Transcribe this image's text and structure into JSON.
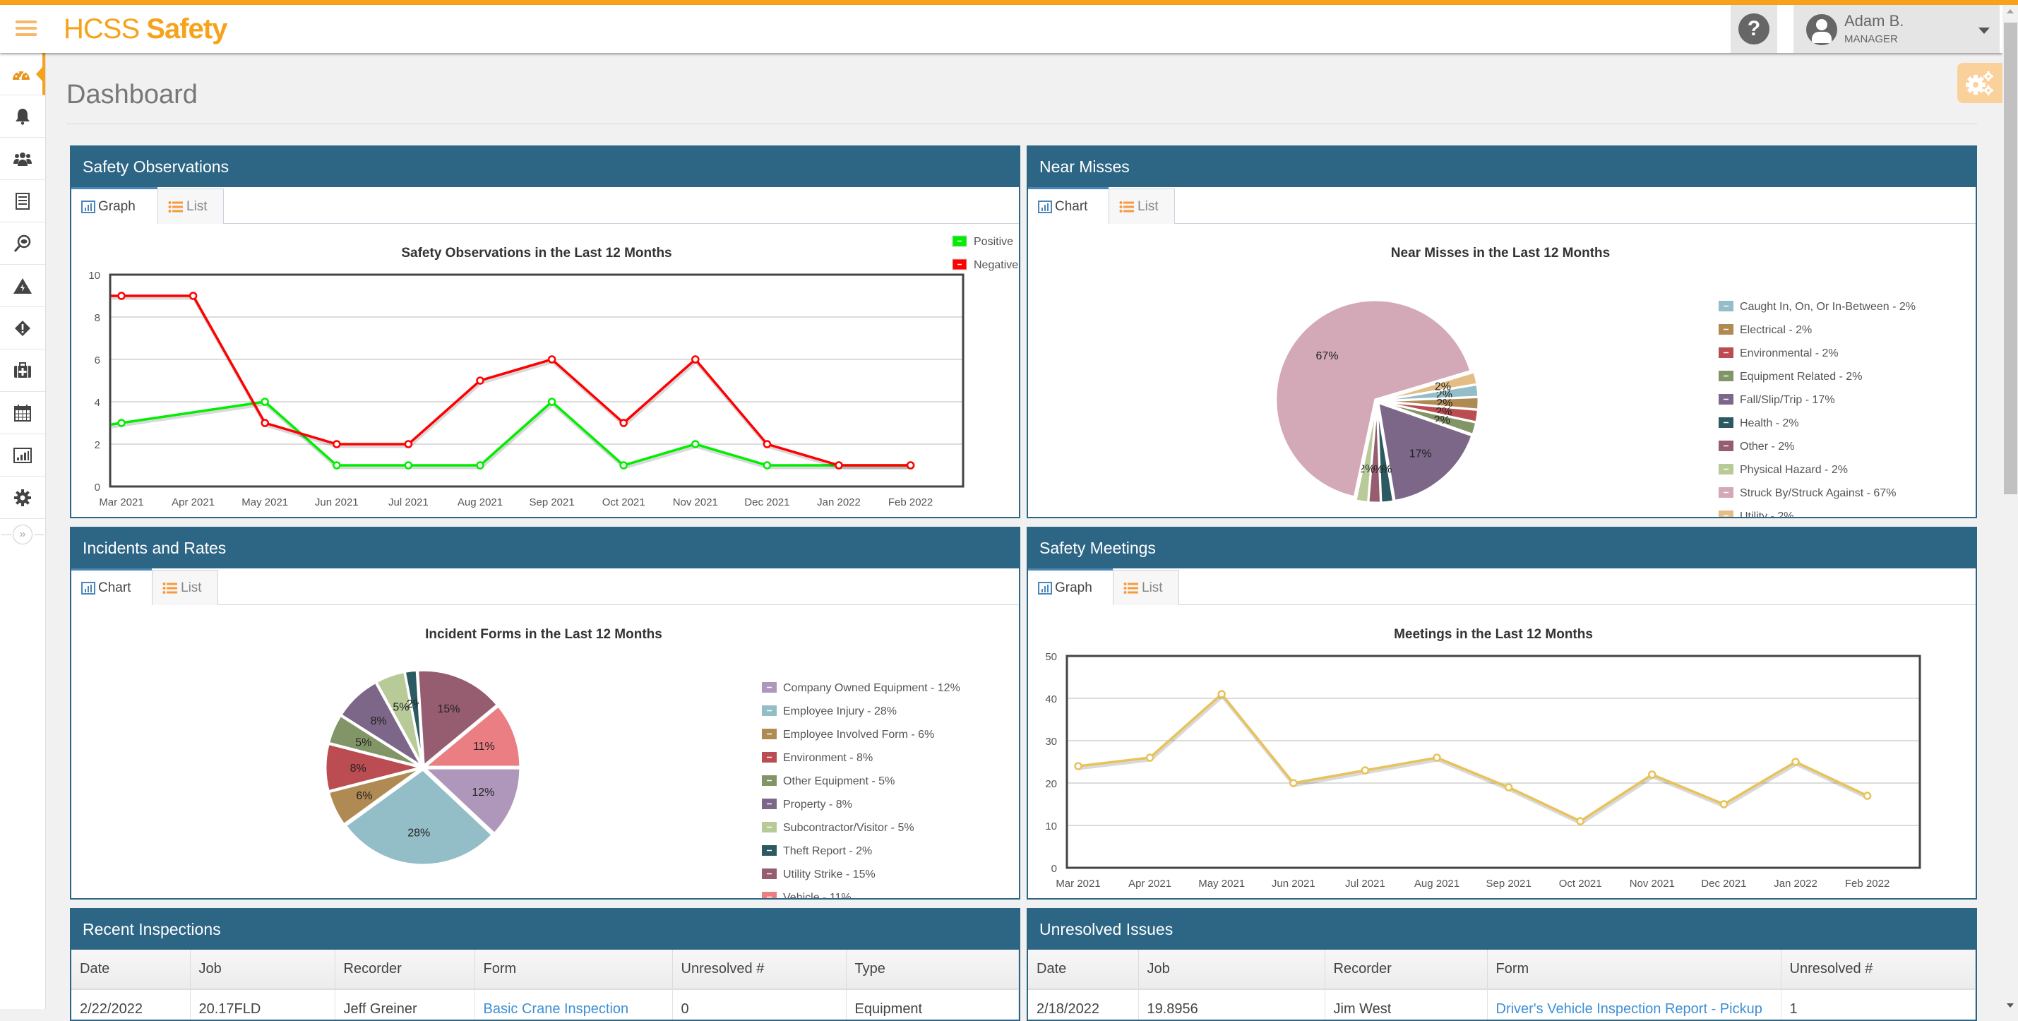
{
  "app": {
    "brand_light": "HCSS",
    "brand_bold": "Safety",
    "accent": "#f7a21b",
    "panel_header": "#2d6585"
  },
  "header": {
    "help_icon": "question-circle-icon",
    "user_name": "Adam B.",
    "user_role": "MANAGER"
  },
  "sidebar": {
    "items": [
      {
        "name": "dashboard",
        "icon": "dashboard-gauge-icon",
        "active": true
      },
      {
        "name": "notifications",
        "icon": "bell-icon"
      },
      {
        "name": "people",
        "icon": "users-icon"
      },
      {
        "name": "forms",
        "icon": "checklist-icon"
      },
      {
        "name": "observations",
        "icon": "eye-magnifier-icon"
      },
      {
        "name": "hazards",
        "icon": "warning-triangle-icon"
      },
      {
        "name": "near-misses",
        "icon": "diamond-exclamation-icon"
      },
      {
        "name": "incidents",
        "icon": "medkit-icon"
      },
      {
        "name": "meetings",
        "icon": "calendar-icon"
      },
      {
        "name": "reports",
        "icon": "bar-chart-icon"
      },
      {
        "name": "settings",
        "icon": "gear-icon"
      }
    ],
    "expand_label": "»"
  },
  "page": {
    "title": "Dashboard",
    "settings_icon": "gears-icon"
  },
  "panels": {
    "safety_observations": {
      "title": "Safety Observations",
      "tabs": [
        "Graph",
        "List"
      ],
      "active_tab": "Graph"
    },
    "near_misses": {
      "title": "Near Misses",
      "tabs": [
        "Chart",
        "List"
      ],
      "active_tab": "Chart"
    },
    "incidents": {
      "title": "Incidents and Rates",
      "tabs": [
        "Chart",
        "List"
      ],
      "active_tab": "Chart"
    },
    "safety_meetings": {
      "title": "Safety Meetings",
      "tabs": [
        "Graph",
        "List"
      ],
      "active_tab": "Graph"
    },
    "recent_inspections": {
      "title": "Recent Inspections",
      "columns": [
        "Date",
        "Job",
        "Recorder",
        "Form",
        "Unresolved #",
        "Type"
      ],
      "rows": [
        [
          "2/22/2022",
          "20.17FLD",
          "Jeff Greiner",
          "Basic Crane Inspection",
          "0",
          "Equipment"
        ]
      ]
    },
    "unresolved_issues": {
      "title": "Unresolved Issues",
      "columns": [
        "Date",
        "Job",
        "Recorder",
        "Form",
        "Unresolved #"
      ],
      "rows": [
        [
          "2/18/2022",
          "19.8956",
          "Jim West",
          "Driver's Vehicle Inspection Report - Pickup",
          "1"
        ]
      ]
    }
  },
  "chart_data": [
    {
      "id": "observations",
      "type": "line",
      "title": "Safety Observations in the Last 12 Months",
      "categories": [
        "Mar 2021",
        "Apr 2021",
        "May 2021",
        "Jun 2021",
        "Jul 2021",
        "Aug 2021",
        "Sep 2021",
        "Oct 2021",
        "Nov 2021",
        "Dec 2021",
        "Jan 2022",
        "Feb 2022"
      ],
      "series": [
        {
          "name": "Positive",
          "color": "#00ee00",
          "values": [
            3,
            null,
            4,
            1,
            1,
            1,
            4,
            1,
            2,
            1,
            1,
            1
          ]
        },
        {
          "name": "Negative",
          "color": "#ff0000",
          "values": [
            9,
            9,
            3,
            2,
            2,
            5,
            6,
            3,
            6,
            2,
            1,
            1
          ]
        }
      ],
      "yticks": [
        0,
        2,
        4,
        6,
        8,
        10
      ],
      "ylim": [
        0,
        10
      ],
      "grid": true,
      "legend": "top-right"
    },
    {
      "id": "near_misses",
      "type": "pie",
      "title": "Near Misses in the Last 12 Months",
      "slices": [
        {
          "label": "Caught In, On, Or In-Between",
          "value": 2,
          "color": "#93bec7"
        },
        {
          "label": "Electrical",
          "value": 2,
          "color": "#b08a53"
        },
        {
          "label": "Environmental",
          "value": 2,
          "color": "#bb4d52"
        },
        {
          "label": "Equipment Related",
          "value": 2,
          "color": "#829566"
        },
        {
          "label": "Fall/Slip/Trip",
          "value": 17,
          "color": "#7c6789"
        },
        {
          "label": "Health",
          "value": 2,
          "color": "#2c5a62"
        },
        {
          "label": "Other",
          "value": 2,
          "color": "#955d6f"
        },
        {
          "label": "Physical Hazard",
          "value": 2,
          "color": "#b7ca98"
        },
        {
          "label": "Struck By/Struck Against",
          "value": 67,
          "color": "#d4a9b7"
        },
        {
          "label": "Utility",
          "value": 2,
          "color": "#e3bd85"
        }
      ],
      "legend": "right"
    },
    {
      "id": "incidents",
      "type": "pie",
      "title": "Incident Forms in the Last 12 Months",
      "slices": [
        {
          "label": "Company Owned Equipment",
          "value": 12,
          "color": "#af97bb"
        },
        {
          "label": "Employee Injury",
          "value": 28,
          "color": "#93bec7"
        },
        {
          "label": "Employee Involved Form",
          "value": 6,
          "color": "#b08a53"
        },
        {
          "label": "Environment",
          "value": 8,
          "color": "#bb4d52"
        },
        {
          "label": "Other Equipment",
          "value": 5,
          "color": "#829566"
        },
        {
          "label": "Property",
          "value": 8,
          "color": "#7c6789"
        },
        {
          "label": "Subcontractor/Visitor",
          "value": 5,
          "color": "#b7ca98"
        },
        {
          "label": "Theft Report",
          "value": 2,
          "color": "#2c5a62"
        },
        {
          "label": "Utility Strike",
          "value": 15,
          "color": "#955d6f"
        },
        {
          "label": "Vehicle",
          "value": 11,
          "color": "#ea7e83"
        }
      ],
      "legend": "right"
    },
    {
      "id": "meetings",
      "type": "line",
      "title": "Meetings in the Last 12 Months",
      "categories": [
        "Mar 2021",
        "Apr 2021",
        "May 2021",
        "Jun 2021",
        "Jul 2021",
        "Aug 2021",
        "Sep 2021",
        "Oct 2021",
        "Nov 2021",
        "Dec 2021",
        "Jan 2022",
        "Feb 2022"
      ],
      "series": [
        {
          "name": "Meetings",
          "color": "#e8c25a",
          "values": [
            24,
            26,
            41,
            20,
            23,
            26,
            19,
            11,
            22,
            15,
            25,
            17
          ]
        }
      ],
      "yticks": [
        0,
        10,
        20,
        30,
        40,
        50
      ],
      "ylim": [
        0,
        50
      ],
      "grid": true,
      "legend": "none"
    }
  ]
}
